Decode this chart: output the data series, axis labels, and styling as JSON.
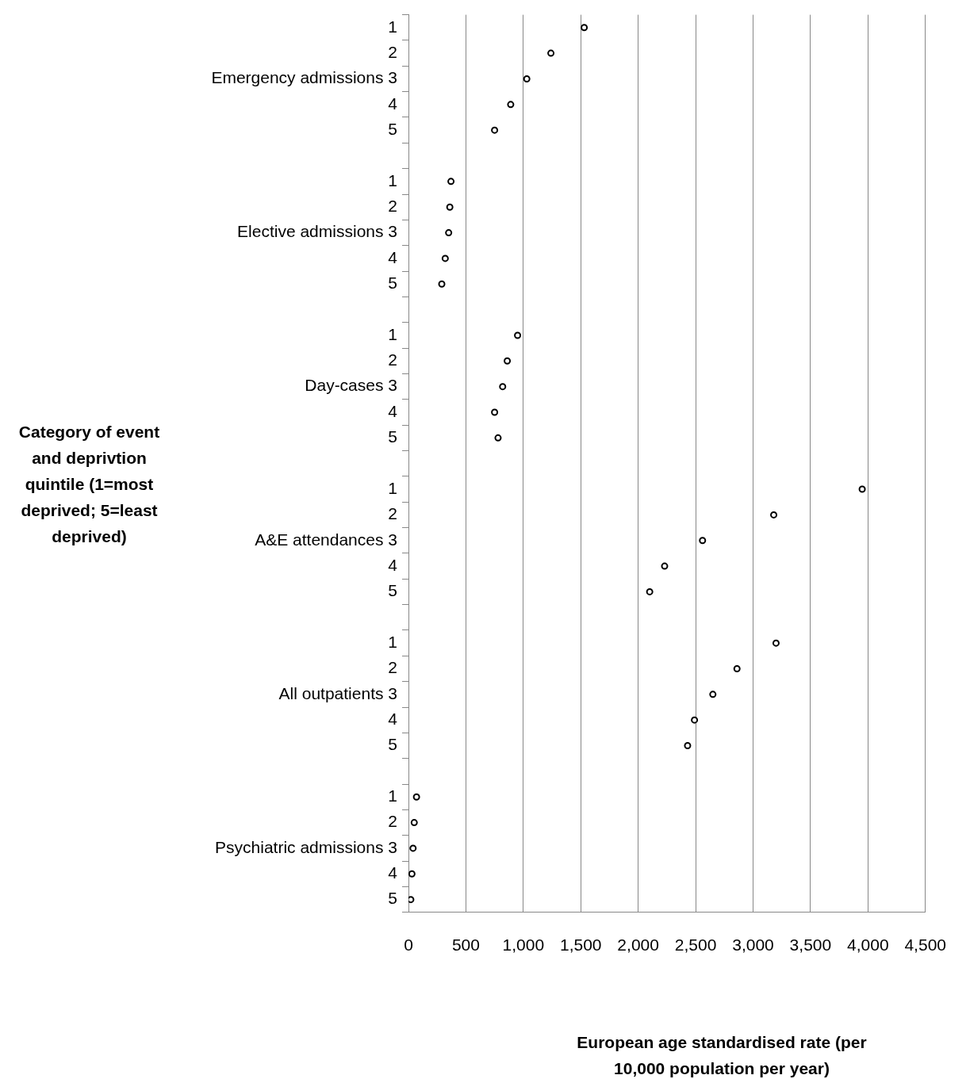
{
  "chart_data": {
    "type": "scatter",
    "orientation": "horizontal",
    "xlabel": "European age standardised rate (per 10,000 population per year)",
    "ylabel": "Category of event and deprivtion quintile (1=most deprived; 5=least deprived)",
    "categories": [
      "1",
      "2",
      "Emergency admissions 3",
      "4",
      "5",
      null,
      "1",
      "2",
      "Elective admissions 3",
      "4",
      "5",
      null,
      "1",
      "2",
      "Day-cases 3",
      "4",
      "5",
      null,
      "1",
      "2",
      "A&E attendances 3",
      "4",
      "5",
      null,
      "1",
      "2",
      "All outpatients 3",
      "4",
      "5",
      null,
      "1",
      "2",
      "Psychiatric admissions 3",
      "4",
      "5"
    ],
    "values": [
      1530,
      1240,
      1030,
      890,
      750,
      null,
      370,
      360,
      350,
      320,
      290,
      null,
      950,
      860,
      820,
      750,
      780,
      null,
      3950,
      3180,
      2560,
      2230,
      2100,
      null,
      3200,
      2860,
      2650,
      2490,
      2430,
      null,
      70,
      50,
      40,
      30,
      20
    ],
    "color": "#000000",
    "marker": "circle",
    "grid": "x",
    "xlim": [
      0,
      4500
    ],
    "xticks": [
      0,
      500,
      {
        "value": 1000,
        "label": "1,000"
      },
      {
        "value": 1500,
        "label": "1,500"
      },
      {
        "value": 2000,
        "label": "2,000"
      },
      {
        "value": 2500,
        "label": "2,500"
      },
      {
        "value": 3000,
        "label": "3,000"
      },
      {
        "value": 3500,
        "label": "3,500"
      },
      {
        "value": 4000,
        "label": "4,000"
      },
      {
        "value": 4500,
        "label": "4,500"
      }
    ]
  }
}
